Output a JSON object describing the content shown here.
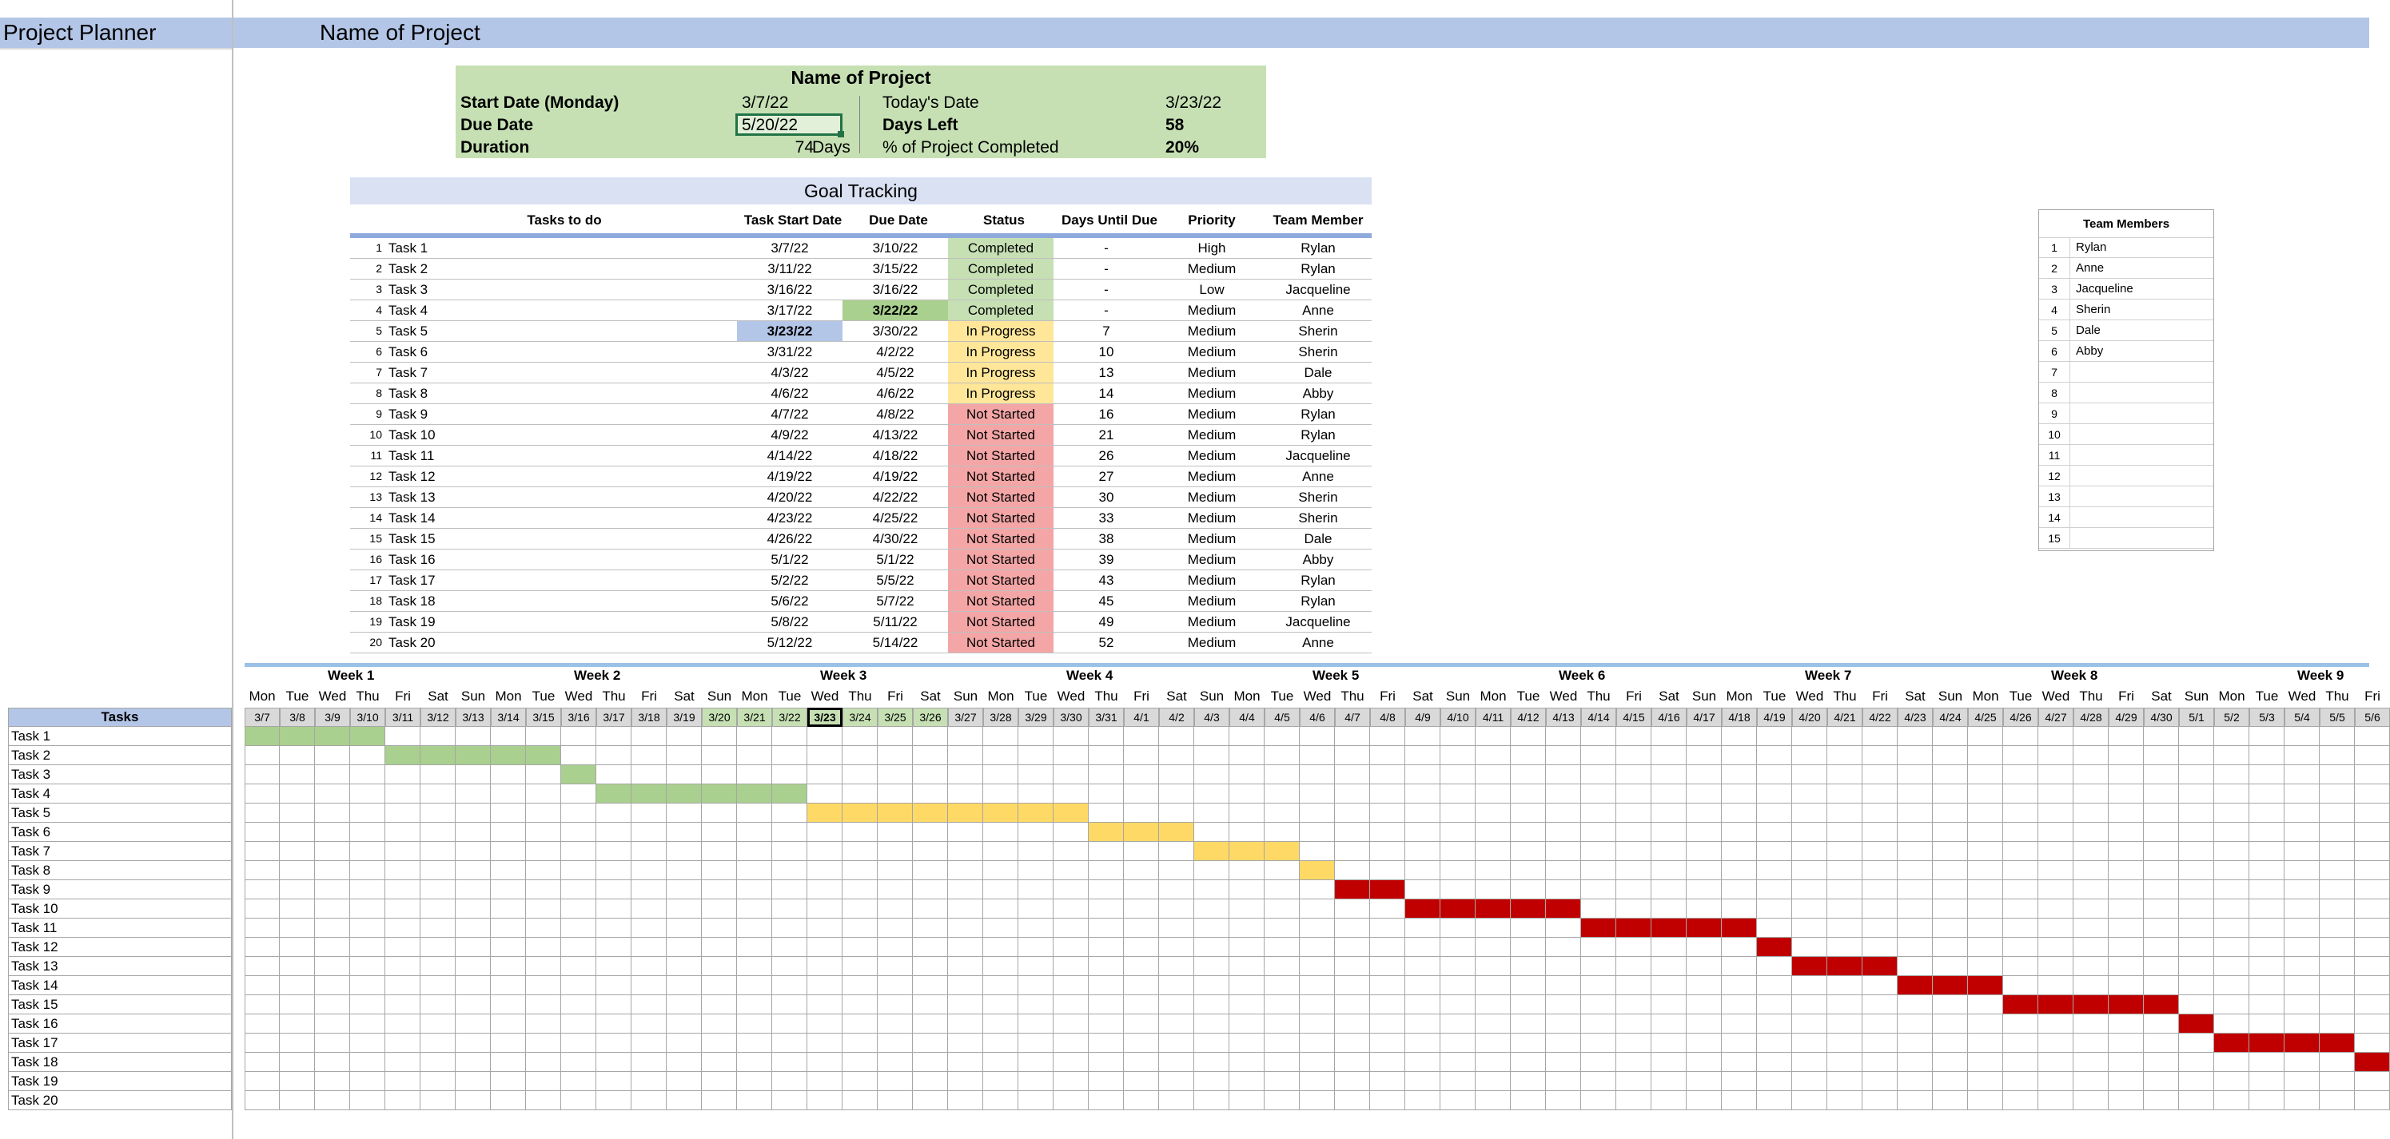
{
  "header": {
    "app_title": "Project Planner",
    "project_name": "Name of Project"
  },
  "summary": {
    "title": "Name of Project",
    "start_label": "Start Date (Monday)",
    "start_value": "3/7/22",
    "due_label": "Due Date",
    "due_value": "5/20/22",
    "duration_label": "Duration",
    "duration_value": "74",
    "duration_unit": "Days",
    "today_label": "Today's Date",
    "today_value": "3/23/22",
    "days_left_label": "Days Left",
    "days_left_value": "58",
    "completed_label": "% of Project Completed",
    "completed_value": "20%"
  },
  "goal_tracking": {
    "title": "Goal Tracking",
    "headers": [
      "Tasks to do",
      "Task Start Date",
      "Due Date",
      "Status",
      "Days Until Due",
      "Priority",
      "Team Member"
    ],
    "rows": [
      {
        "num": "1",
        "task": "Task 1",
        "start": "3/7/22",
        "due": "3/10/22",
        "status": "Completed",
        "days": "-",
        "priority": "High",
        "member": "Rylan"
      },
      {
        "num": "2",
        "task": "Task 2",
        "start": "3/11/22",
        "due": "3/15/22",
        "status": "Completed",
        "days": "-",
        "priority": "Medium",
        "member": "Rylan"
      },
      {
        "num": "3",
        "task": "Task 3",
        "start": "3/16/22",
        "due": "3/16/22",
        "status": "Completed",
        "days": "-",
        "priority": "Low",
        "member": "Jacqueline"
      },
      {
        "num": "4",
        "task": "Task 4",
        "start": "3/17/22",
        "due": "3/22/22",
        "status": "Completed",
        "days": "-",
        "priority": "Medium",
        "member": "Anne"
      },
      {
        "num": "5",
        "task": "Task 5",
        "start": "3/23/22",
        "due": "3/30/22",
        "status": "In Progress",
        "days": "7",
        "priority": "Medium",
        "member": "Sherin"
      },
      {
        "num": "6",
        "task": "Task 6",
        "start": "3/31/22",
        "due": "4/2/22",
        "status": "In Progress",
        "days": "10",
        "priority": "Medium",
        "member": "Sherin"
      },
      {
        "num": "7",
        "task": "Task 7",
        "start": "4/3/22",
        "due": "4/5/22",
        "status": "In Progress",
        "days": "13",
        "priority": "Medium",
        "member": "Dale"
      },
      {
        "num": "8",
        "task": "Task 8",
        "start": "4/6/22",
        "due": "4/6/22",
        "status": "In Progress",
        "days": "14",
        "priority": "Medium",
        "member": "Abby"
      },
      {
        "num": "9",
        "task": "Task 9",
        "start": "4/7/22",
        "due": "4/8/22",
        "status": "Not Started",
        "days": "16",
        "priority": "Medium",
        "member": "Rylan"
      },
      {
        "num": "10",
        "task": "Task 10",
        "start": "4/9/22",
        "due": "4/13/22",
        "status": "Not Started",
        "days": "21",
        "priority": "Medium",
        "member": "Rylan"
      },
      {
        "num": "11",
        "task": "Task 11",
        "start": "4/14/22",
        "due": "4/18/22",
        "status": "Not Started",
        "days": "26",
        "priority": "Medium",
        "member": "Jacqueline"
      },
      {
        "num": "12",
        "task": "Task 12",
        "start": "4/19/22",
        "due": "4/19/22",
        "status": "Not Started",
        "days": "27",
        "priority": "Medium",
        "member": "Anne"
      },
      {
        "num": "13",
        "task": "Task 13",
        "start": "4/20/22",
        "due": "4/22/22",
        "status": "Not Started",
        "days": "30",
        "priority": "Medium",
        "member": "Sherin"
      },
      {
        "num": "14",
        "task": "Task 14",
        "start": "4/23/22",
        "due": "4/25/22",
        "status": "Not Started",
        "days": "33",
        "priority": "Medium",
        "member": "Sherin"
      },
      {
        "num": "15",
        "task": "Task 15",
        "start": "4/26/22",
        "due": "4/30/22",
        "status": "Not Started",
        "days": "38",
        "priority": "Medium",
        "member": "Dale"
      },
      {
        "num": "16",
        "task": "Task 16",
        "start": "5/1/22",
        "due": "5/1/22",
        "status": "Not Started",
        "days": "39",
        "priority": "Medium",
        "member": "Abby"
      },
      {
        "num": "17",
        "task": "Task 17",
        "start": "5/2/22",
        "due": "5/5/22",
        "status": "Not Started",
        "days": "43",
        "priority": "Medium",
        "member": "Rylan"
      },
      {
        "num": "18",
        "task": "Task 18",
        "start": "5/6/22",
        "due": "5/7/22",
        "status": "Not Started",
        "days": "45",
        "priority": "Medium",
        "member": "Rylan"
      },
      {
        "num": "19",
        "task": "Task 19",
        "start": "5/8/22",
        "due": "5/11/22",
        "status": "Not Started",
        "days": "49",
        "priority": "Medium",
        "member": "Jacqueline"
      },
      {
        "num": "20",
        "task": "Task 20",
        "start": "5/12/22",
        "due": "5/14/22",
        "status": "Not Started",
        "days": "52",
        "priority": "Medium",
        "member": "Anne"
      }
    ]
  },
  "team": {
    "title": "Team Members",
    "rows": [
      {
        "num": "1",
        "name": "Rylan"
      },
      {
        "num": "2",
        "name": "Anne"
      },
      {
        "num": "3",
        "name": "Jacqueline"
      },
      {
        "num": "4",
        "name": "Sherin"
      },
      {
        "num": "5",
        "name": "Dale"
      },
      {
        "num": "6",
        "name": "Abby"
      },
      {
        "num": "7",
        "name": ""
      },
      {
        "num": "8",
        "name": ""
      },
      {
        "num": "9",
        "name": ""
      },
      {
        "num": "10",
        "name": ""
      },
      {
        "num": "11",
        "name": ""
      },
      {
        "num": "12",
        "name": ""
      },
      {
        "num": "13",
        "name": ""
      },
      {
        "num": "14",
        "name": ""
      },
      {
        "num": "15",
        "name": ""
      }
    ]
  },
  "gantt": {
    "tasks_header": "Tasks",
    "weeks": [
      "Week 1",
      "Week 2",
      "Week 3",
      "Week 4",
      "Week 5",
      "Week 6",
      "Week 7",
      "Week 8",
      "Week 9"
    ],
    "day_names": [
      "Mon",
      "Tue",
      "Wed",
      "Thu",
      "Fri",
      "Sat",
      "Sun"
    ],
    "dates": [
      "3/7",
      "3/8",
      "3/9",
      "3/10",
      "3/11",
      "3/12",
      "3/13",
      "3/14",
      "3/15",
      "3/16",
      "3/17",
      "3/18",
      "3/19",
      "3/20",
      "3/21",
      "3/22",
      "3/23",
      "3/24",
      "3/25",
      "3/26",
      "3/27",
      "3/28",
      "3/29",
      "3/30",
      "3/31",
      "4/1",
      "4/2",
      "4/3",
      "4/4",
      "4/5",
      "4/6",
      "4/7",
      "4/8",
      "4/9",
      "4/10",
      "4/11",
      "4/12",
      "4/13",
      "4/14",
      "4/15",
      "4/16",
      "4/17",
      "4/18",
      "4/19",
      "4/20",
      "4/21",
      "4/22",
      "4/23",
      "4/24",
      "4/25",
      "4/26",
      "4/27",
      "4/28",
      "4/29",
      "4/30",
      "5/1",
      "5/2",
      "5/3",
      "5/4",
      "5/5",
      "5/6"
    ],
    "today": "3/23",
    "task_labels": [
      "Task 1",
      "Task 2",
      "Task 3",
      "Task 4",
      "Task 5",
      "Task 6",
      "Task 7",
      "Task 8",
      "Task 9",
      "Task 10",
      "Task 11",
      "Task 12",
      "Task 13",
      "Task 14",
      "Task 15",
      "Task 16",
      "Task 17",
      "Task 18",
      "Task 19",
      "Task 20"
    ]
  },
  "colors": {
    "header_blue": "#b4c6e7",
    "summary_green": "#c6e0b4",
    "completed": "#c6e0b4",
    "in_progress": "#ffe699",
    "not_started": "#f4a6a6",
    "bar_completed": "#a9d08e",
    "bar_in_progress": "#ffd966",
    "bar_not_started": "#c00000"
  }
}
